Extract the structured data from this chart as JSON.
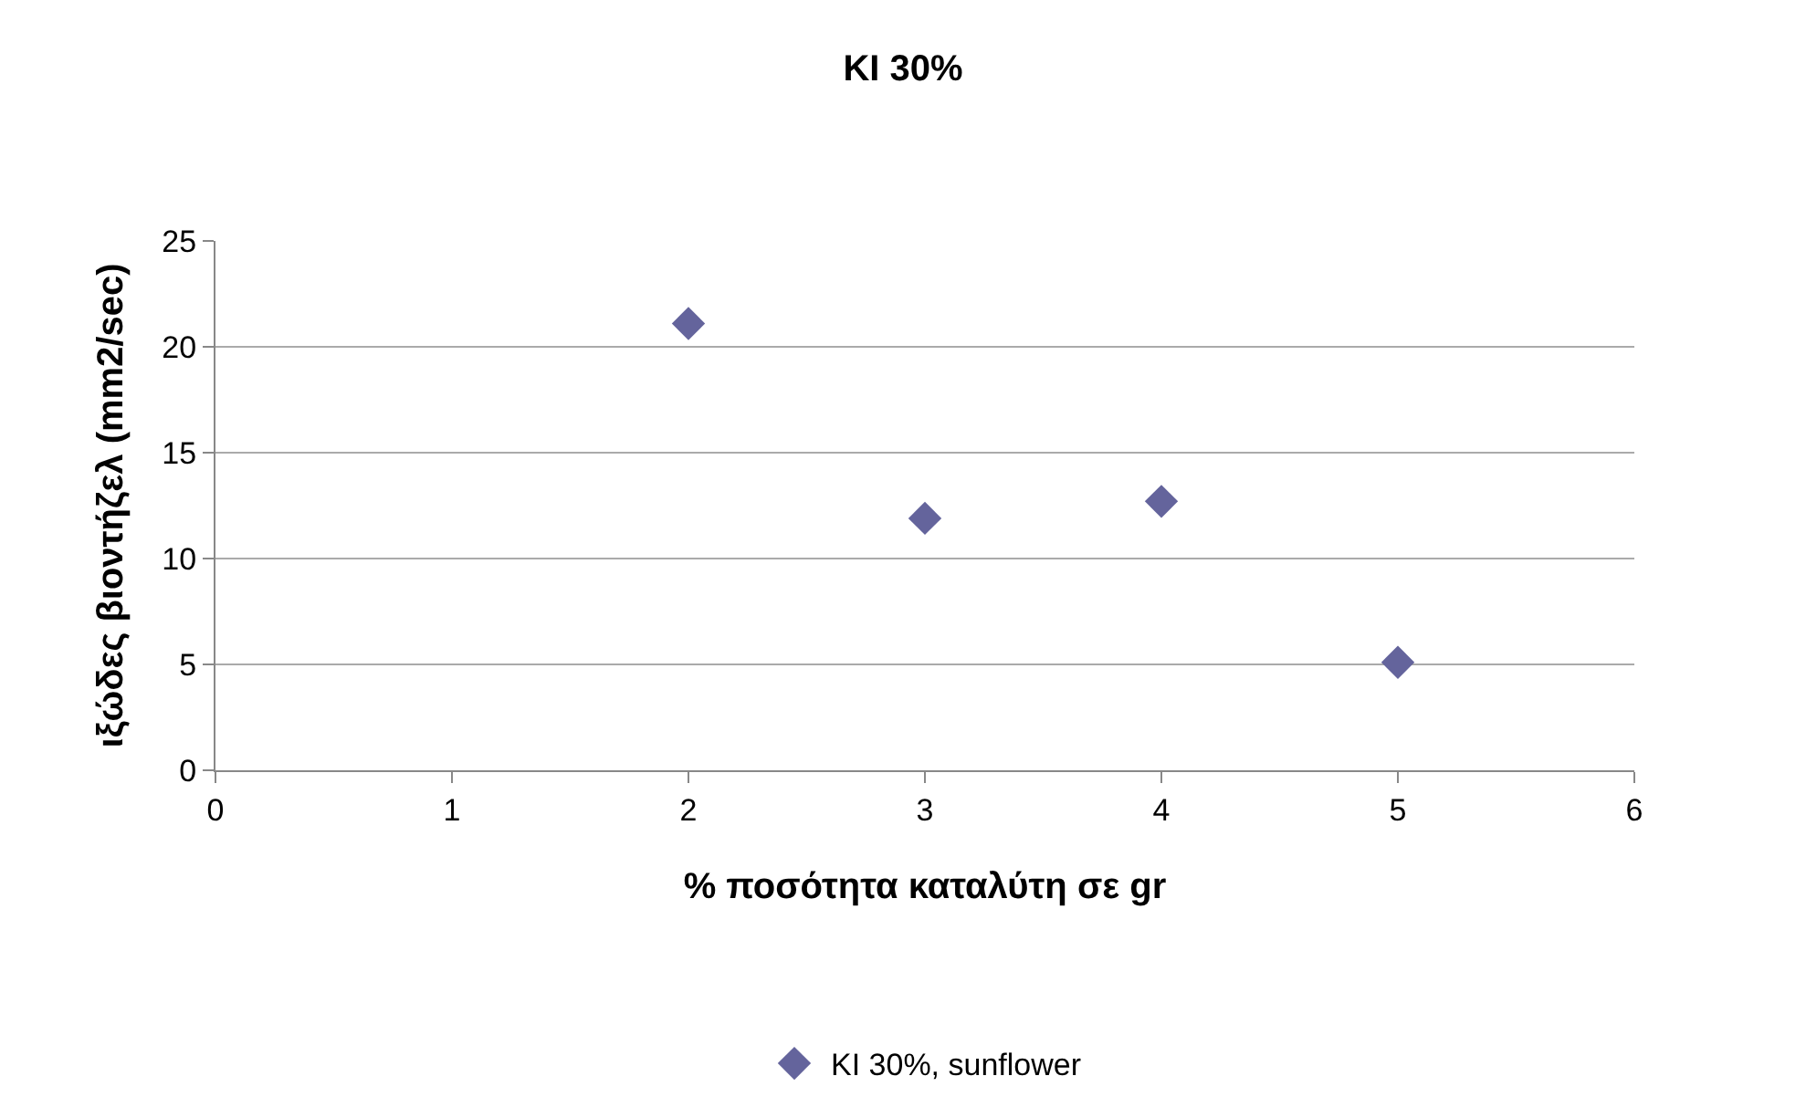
{
  "chart_data": {
    "type": "scatter",
    "title": "KI 30%",
    "xlabel": "% ποσότητα καταλύτη σε gr",
    "ylabel": "ιξώδες βιοντήζελ (mm2/sec)",
    "x": [
      2,
      3,
      4,
      5
    ],
    "series": [
      {
        "name": "KI 30%, sunflower",
        "color": "#64649c",
        "values": [
          21.1,
          11.9,
          12.7,
          5.1
        ]
      }
    ],
    "xlim": [
      0,
      6
    ],
    "xticks": [
      0,
      1,
      2,
      3,
      4,
      5,
      6
    ],
    "ylim": [
      0,
      25
    ],
    "yticks": [
      0,
      5,
      10,
      15,
      20,
      25
    ],
    "grid": "y",
    "legend": "bottom",
    "marker": "diamond"
  }
}
